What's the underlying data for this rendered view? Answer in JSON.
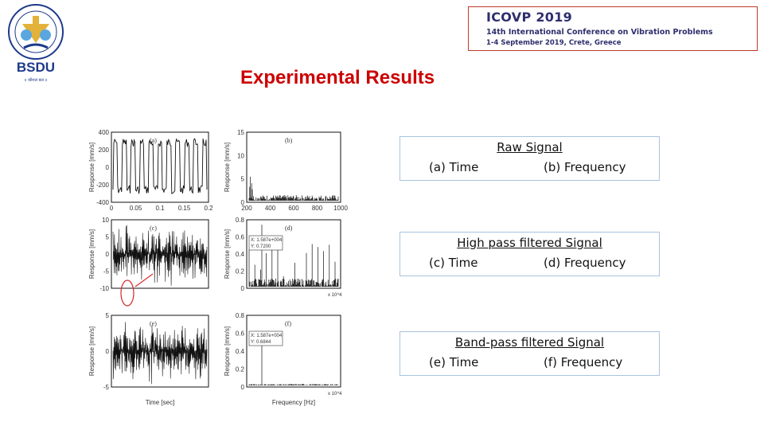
{
  "logo": {
    "text": "BSDU",
    "ring_text": "BHARTIYA SKILL DEVELOPMENT UNIVERSITY",
    "motto": "॥ कौशलं बलं ॥",
    "colors": {
      "navy": "#1d3a8a",
      "gold": "#e2b23a",
      "sky": "#5aa7e0"
    }
  },
  "conference": {
    "title": "ICOVP 2019",
    "subtitle": "14th International Conference on Vibration Problems",
    "dates": "1-4 September 2019, Crete, Greece",
    "border_color": "#c0392b"
  },
  "slide": {
    "title": "Experimental Results",
    "title_color": "#cc0000"
  },
  "figure": {
    "panels": [
      {
        "label": "(a)",
        "ylabel": "Response [mm/s]",
        "yticks": [
          "400",
          "200",
          "0",
          "-200",
          "-400"
        ],
        "xticks": [
          "0",
          "0.05",
          "0.1",
          "0.15",
          "0.2"
        ]
      },
      {
        "label": "(b)",
        "ylabel": "Response [mm/s]",
        "yticks": [
          "15",
          "10",
          "5",
          "0"
        ],
        "xticks": [
          "200",
          "400",
          "600",
          "800",
          "1000"
        ]
      },
      {
        "label": "(c)",
        "ylabel": "Response [mm/s]",
        "yticks": [
          "10",
          "5",
          "0",
          "-5",
          "-10"
        ],
        "xticks": []
      },
      {
        "label": "(d)",
        "ylabel": "Response [mm/s]",
        "yticks": [
          "0.8",
          "0.6",
          "0.4",
          "0.2",
          "0"
        ],
        "xticks": [],
        "datatip": [
          "X: 1.587e+004",
          "Y: 0.7200"
        ],
        "exponent": "x 10^4"
      },
      {
        "label": "(e)",
        "ylabel": "Response [mm/s]",
        "yticks": [
          "5",
          "0",
          "-5"
        ],
        "xticks": [],
        "xlabel": "Time [sec]"
      },
      {
        "label": "(f)",
        "ylabel": "Response [mm/s]",
        "yticks": [
          "0.8",
          "0.6",
          "0.4",
          "0.2",
          "0"
        ],
        "xticks": [],
        "datatip": [
          "X: 1.587e+004",
          "Y: 0.6844"
        ],
        "xlabel": "Frequency [Hz]",
        "exponent": "x 10^4"
      }
    ]
  },
  "captions": [
    {
      "heading": "Raw Signal",
      "left": "(a) Time",
      "right": "(b) Frequency"
    },
    {
      "heading": "High pass filtered Signal",
      "left": "(c) Time",
      "right": "(d) Frequency"
    },
    {
      "heading": "Band-pass filtered Signal",
      "left": "(e) Time",
      "right": "(f) Frequency"
    }
  ]
}
